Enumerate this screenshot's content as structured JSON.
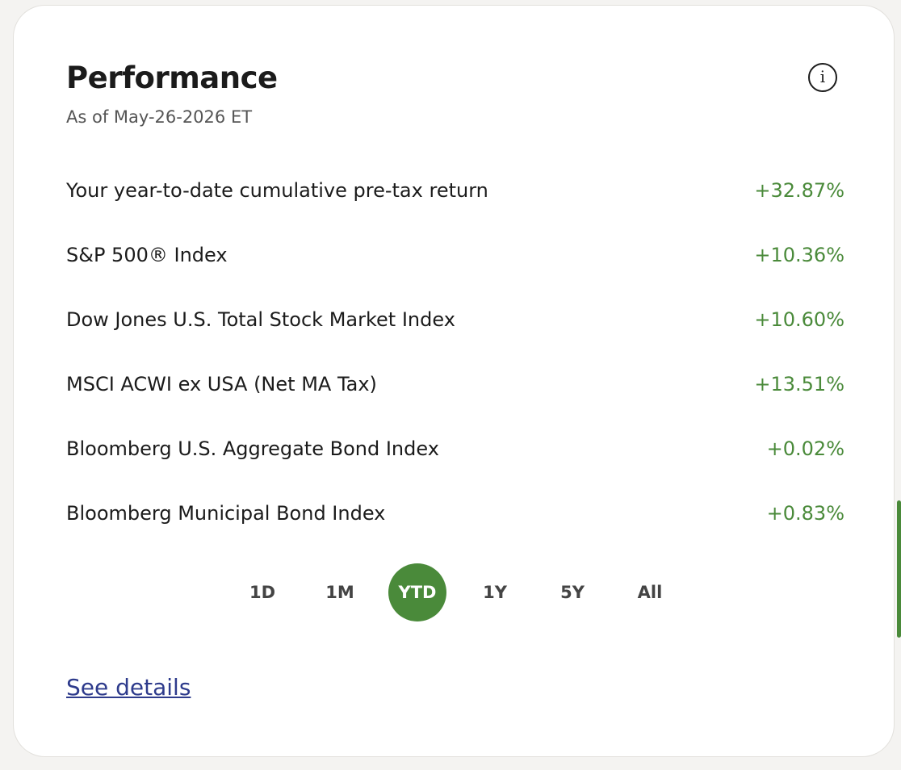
{
  "header": {
    "title": "Performance",
    "subtitle": "As of May-26-2026 ET"
  },
  "rows": [
    {
      "label": "Your year-to-date cumulative pre-tax return",
      "value": "+32.87%"
    },
    {
      "label": "S&P 500® Index",
      "value": "+10.36%"
    },
    {
      "label": "Dow Jones U.S. Total Stock Market Index",
      "value": "+10.60%"
    },
    {
      "label": "MSCI ACWI ex USA (Net MA Tax)",
      "value": "+13.51%"
    },
    {
      "label": "Bloomberg U.S. Aggregate Bond Index",
      "value": "+0.02%"
    },
    {
      "label": "Bloomberg Municipal Bond Index",
      "value": "+0.83%"
    }
  ],
  "periods": [
    "1D",
    "1M",
    "YTD",
    "1Y",
    "5Y",
    "All"
  ],
  "active_period": 2,
  "link": "See details"
}
